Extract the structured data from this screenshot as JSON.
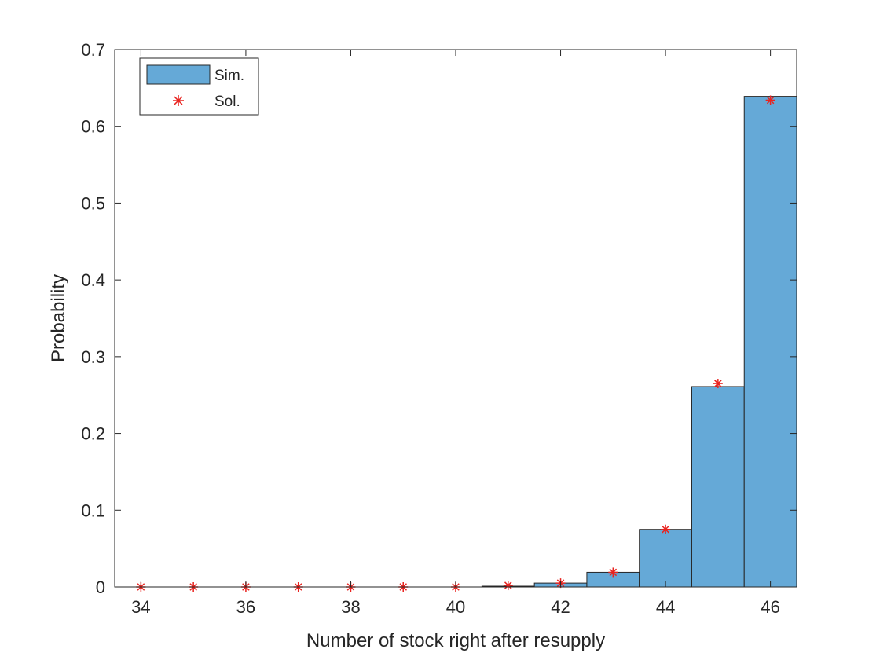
{
  "chart_data": {
    "type": "bar",
    "xlabel": "Number of stock right after resupply",
    "ylabel": "Probability",
    "xlim": [
      33.5,
      46.5
    ],
    "ylim": [
      0,
      0.7
    ],
    "xticks": [
      34,
      36,
      38,
      40,
      42,
      44,
      46
    ],
    "yticks": [
      0,
      0.1,
      0.2,
      0.3,
      0.4,
      0.5,
      0.6,
      0.7
    ],
    "ytick_labels": [
      "0",
      "0.1",
      "0.2",
      "0.3",
      "0.4",
      "0.5",
      "0.6",
      "0.7"
    ],
    "legend": {
      "position": "top-left",
      "entries": [
        "Sim.",
        "Sol."
      ]
    },
    "series": [
      {
        "name": "Sim.",
        "kind": "histogram",
        "color": "#65a9d7",
        "x": [
          34,
          35,
          36,
          37,
          38,
          39,
          40,
          41,
          42,
          43,
          44,
          45,
          46
        ],
        "values": [
          0,
          0,
          0,
          0,
          0,
          0,
          0,
          0.001,
          0.005,
          0.019,
          0.075,
          0.261,
          0.639
        ]
      },
      {
        "name": "Sol.",
        "kind": "markers",
        "color": "#e8231f",
        "marker": "asterisk",
        "x": [
          34,
          35,
          36,
          37,
          38,
          39,
          40,
          41,
          42,
          43,
          44,
          45,
          46
        ],
        "values": [
          0,
          0,
          0,
          0,
          0,
          0,
          0,
          0.002,
          0.005,
          0.019,
          0.075,
          0.265,
          0.634
        ]
      }
    ]
  }
}
